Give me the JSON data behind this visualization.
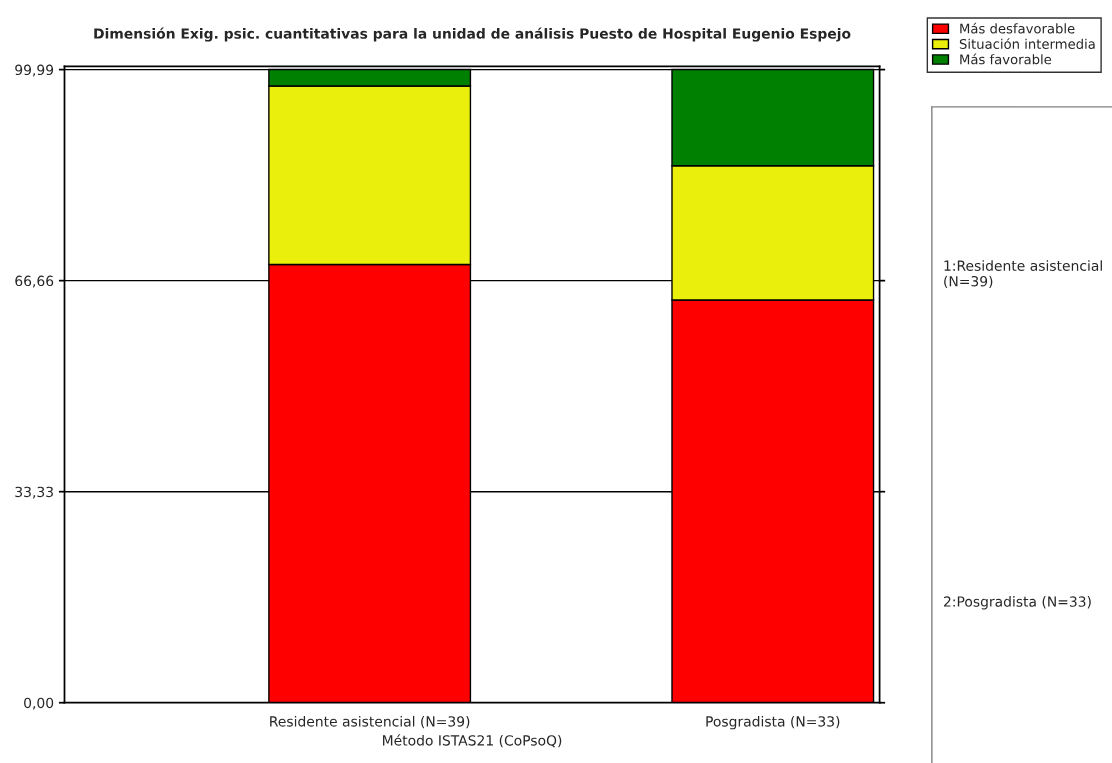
{
  "chart_data": {
    "type": "bar",
    "stacked": true,
    "title": "Dimensión Exig. psic. cuantitativas para la unidad de análisis Puesto de Hospital Eugenio Espejo",
    "xlabel": "Método ISTAS21 (CoPsoQ)",
    "categories": [
      "Residente asistencial (N=39)",
      "Posgradista (N=33)"
    ],
    "series": [
      {
        "name": "Más desfavorable",
        "color": "#ff0000",
        "values": [
          69.2,
          63.6
        ]
      },
      {
        "name": "Situación intermedia",
        "color": "#eaf00c",
        "values": [
          28.2,
          21.2
        ]
      },
      {
        "name": "Más favorable",
        "color": "#008000",
        "values": [
          2.6,
          15.2
        ]
      }
    ],
    "ylim": [
      0,
      100.5
    ],
    "yticks": [
      {
        "value": 0,
        "label": "0,00"
      },
      {
        "value": 33.33,
        "label": "33,33"
      },
      {
        "value": 66.66,
        "label": "66,66"
      },
      {
        "value": 99.99,
        "label": "99,99"
      }
    ],
    "grid": "y",
    "legend": "top right",
    "annotations": [
      "1:Residente asistencial (N=39)",
      "2:Posgradista (N=33)"
    ]
  }
}
